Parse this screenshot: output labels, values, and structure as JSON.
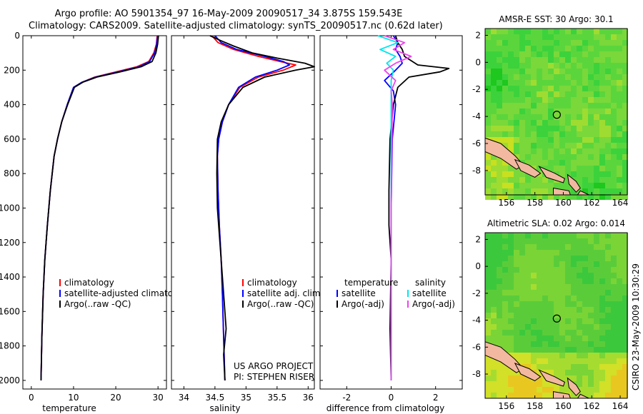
{
  "header": {
    "title_line1": "Argo profile: AO 5901354_97 16-May-2009 20090517_34 3.875S 159.543E",
    "title_line2": "Climatology: CARS2009. Satellite-adjusted climatology: synTS_20090517.nc (0.62d later)"
  },
  "colors": {
    "climatology": "#ff0000",
    "satellite": "#0000ff",
    "argo": "#000000",
    "sal_satellite": "#00e5ee",
    "sal_argo": "#ee44ee",
    "land": "#f2b8a0"
  },
  "chart_data": [
    {
      "type": "line",
      "name": "temperature-panel",
      "xlabel": "temperature",
      "ylabel": "",
      "xlim": [
        -2,
        32
      ],
      "ylim": [
        2050,
        0
      ],
      "xticks": [
        0,
        10,
        20,
        30
      ],
      "yticks": [
        0,
        200,
        400,
        600,
        800,
        1000,
        1200,
        1400,
        1600,
        1800,
        2000
      ],
      "legend": [
        "climatology",
        "satellite-adjusted climatology",
        "Argo(..raw -QC)"
      ],
      "legend_position": "lower-center",
      "series": [
        {
          "name": "climatology",
          "color": "#ff0000",
          "x": [
            29.8,
            29.6,
            29.0,
            27.8,
            25.0,
            20.0,
            15.0,
            12.0,
            10.0,
            8.5,
            7.2,
            6.2,
            5.4,
            4.5,
            3.8,
            3.2,
            2.8,
            2.5,
            2.3
          ],
          "y": [
            0,
            50,
            100,
            150,
            180,
            210,
            240,
            270,
            300,
            400,
            500,
            600,
            700,
            900,
            1100,
            1300,
            1500,
            1750,
            2000
          ]
        },
        {
          "name": "satellite-adjusted climatology",
          "color": "#0000ff",
          "x": [
            29.9,
            29.7,
            29.2,
            28.0,
            25.5,
            20.5,
            15.2,
            12.0,
            10.0,
            8.5,
            7.2,
            6.2,
            5.4,
            4.5,
            3.8,
            3.2,
            2.8,
            2.5,
            2.3
          ],
          "y": [
            0,
            50,
            100,
            150,
            180,
            210,
            240,
            270,
            300,
            400,
            500,
            600,
            700,
            900,
            1100,
            1300,
            1500,
            1750,
            2000
          ]
        },
        {
          "name": "Argo(..raw -QC)",
          "color": "#000000",
          "x": [
            30.1,
            29.9,
            29.5,
            28.6,
            26.0,
            21.0,
            15.5,
            12.2,
            10.2,
            8.6,
            7.2,
            6.2,
            5.4,
            4.5,
            3.8,
            3.2,
            2.8,
            2.5,
            2.3
          ],
          "y": [
            0,
            50,
            100,
            150,
            180,
            210,
            240,
            270,
            300,
            400,
            500,
            600,
            700,
            900,
            1100,
            1300,
            1500,
            1750,
            2000
          ]
        }
      ]
    },
    {
      "type": "line",
      "name": "salinity-panel",
      "xlabel": "salinity",
      "ylabel": "",
      "xlim": [
        33.8,
        36.1
      ],
      "ylim": [
        2050,
        0
      ],
      "xticks": [
        34,
        34.5,
        35,
        35.5,
        36
      ],
      "legend": [
        "climatology",
        "satellite adj. clim.",
        "Argo(..raw -QC)"
      ],
      "legend_position": "lower-center",
      "annotations": [
        "US ARGO PROJECT",
        "PI: STEPHEN RISER"
      ],
      "series": [
        {
          "name": "climatology",
          "color": "#ff0000",
          "x": [
            34.45,
            34.55,
            34.8,
            35.2,
            35.55,
            35.8,
            35.6,
            35.2,
            34.9,
            34.72,
            34.62,
            34.56,
            34.54,
            34.55,
            34.57,
            34.6,
            34.62,
            34.64,
            34.66
          ],
          "y": [
            0,
            40,
            80,
            120,
            150,
            170,
            200,
            240,
            300,
            400,
            500,
            600,
            700,
            900,
            1100,
            1300,
            1500,
            1750,
            2000
          ]
        },
        {
          "name": "satellite adj. clim.",
          "color": "#0000ff",
          "x": [
            34.5,
            34.6,
            34.85,
            35.3,
            35.6,
            35.7,
            35.5,
            35.15,
            34.88,
            34.72,
            34.62,
            34.56,
            34.54,
            34.55,
            34.57,
            34.6,
            34.62,
            34.64,
            34.66
          ],
          "y": [
            0,
            40,
            80,
            120,
            150,
            170,
            200,
            240,
            300,
            400,
            500,
            600,
            700,
            900,
            1100,
            1300,
            1500,
            1750,
            2000
          ]
        },
        {
          "name": "Argo(..raw -QC)",
          "color": "#000000",
          "x": [
            34.42,
            34.6,
            34.8,
            35.1,
            35.5,
            35.95,
            36.1,
            35.8,
            35.3,
            34.95,
            34.72,
            34.6,
            34.54,
            34.53,
            34.54,
            34.58,
            34.62,
            34.68,
            34.64,
            34.66
          ],
          "y": [
            0,
            30,
            60,
            100,
            130,
            160,
            180,
            200,
            240,
            300,
            400,
            500,
            600,
            800,
            1000,
            1200,
            1400,
            1700,
            1850,
            2000
          ]
        }
      ]
    },
    {
      "type": "line",
      "name": "difference-panel",
      "xlabel": "difference from climatology",
      "ylabel": "",
      "xlim": [
        -3.2,
        3.2
      ],
      "ylim": [
        2050,
        0
      ],
      "xticks": [
        -2,
        0,
        2
      ],
      "legend": [
        "temperature",
        "satellite",
        "Argo(-adj)",
        "salinity",
        "satellite",
        "Argo(-adj)"
      ],
      "legend_position": "lower-center",
      "series": [
        {
          "name": "temperature satellite",
          "color": "#0000ff",
          "x": [
            0.1,
            0.3,
            0.2,
            0.4,
            0.5,
            0.2,
            -0.3,
            0.1,
            0.2,
            0.05,
            0.0,
            0.0
          ],
          "y": [
            0,
            40,
            80,
            120,
            160,
            200,
            260,
            320,
            400,
            600,
            1000,
            2000
          ]
        },
        {
          "name": "temperature Argo(-adj)",
          "color": "#000000",
          "x": [
            0.2,
            0.3,
            0.5,
            0.6,
            1.2,
            2.6,
            2.2,
            0.8,
            0.3,
            0.1,
            -0.05,
            -0.1,
            -0.1,
            0.0,
            -0.05,
            0.0
          ],
          "y": [
            0,
            40,
            80,
            120,
            170,
            190,
            210,
            240,
            300,
            400,
            600,
            900,
            1100,
            1300,
            1700,
            2000
          ]
        },
        {
          "name": "salinity satellite",
          "color": "#00e5ee",
          "x": [
            -0.6,
            0.3,
            -0.5,
            0.2,
            -0.2,
            0.1,
            0.0,
            0.0,
            0.0,
            0.0
          ],
          "y": [
            0,
            40,
            80,
            120,
            160,
            200,
            260,
            400,
            1000,
            2000
          ]
        },
        {
          "name": "salinity Argo(-adj)",
          "color": "#ee44ee",
          "x": [
            -0.3,
            0.6,
            0.1,
            0.9,
            0.2,
            -0.3,
            0.2,
            0.0,
            0.05,
            0.0,
            0.0
          ],
          "y": [
            0,
            40,
            80,
            120,
            160,
            200,
            260,
            320,
            400,
            1000,
            2000
          ]
        }
      ]
    },
    {
      "type": "heatmap",
      "name": "sst-map",
      "title": "AMSR-E SST: 30 Argo: 30.1",
      "xlim": [
        154.5,
        164.5
      ],
      "ylim": [
        -9.8,
        2.5
      ],
      "xticks": [
        156,
        158,
        160,
        162,
        164
      ],
      "yticks": [
        2,
        0,
        -2,
        -4,
        -6,
        -8
      ],
      "marker": {
        "lon": 159.543,
        "lat": -3.875
      }
    },
    {
      "type": "heatmap",
      "name": "sla-map",
      "title": "Altimetric SLA: 0.02 Argo: 0.014",
      "xlim": [
        154.5,
        164.5
      ],
      "ylim": [
        -9.8,
        2.5
      ],
      "xticks": [
        156,
        158,
        160,
        162,
        164
      ],
      "yticks": [
        2,
        0,
        -2,
        -4,
        -6,
        -8
      ],
      "marker": {
        "lon": 159.543,
        "lat": -3.875
      }
    }
  ],
  "side_label": "CSIRO 23-May-2009 10:30:29"
}
